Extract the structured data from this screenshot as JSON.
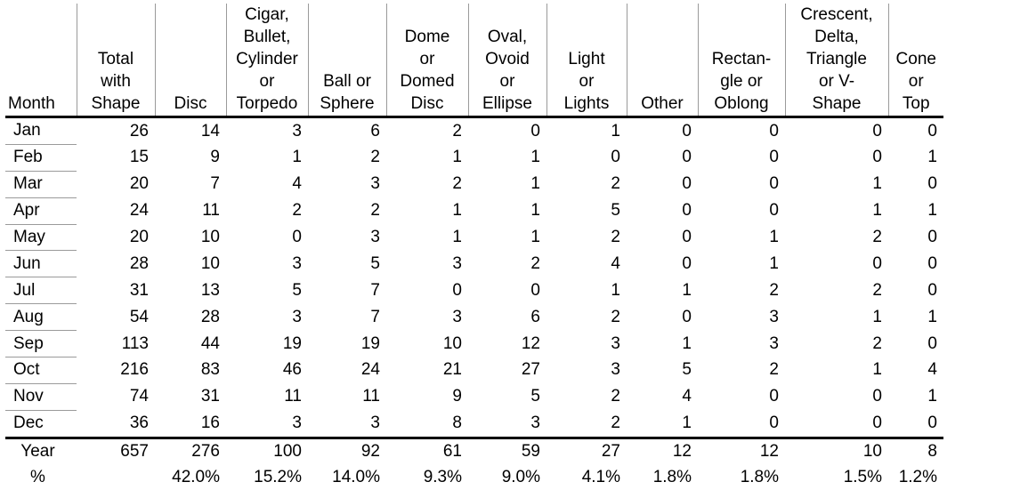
{
  "table": {
    "headers": [
      [
        "Month"
      ],
      [
        "Total",
        "with",
        "Shape"
      ],
      [
        "Disc"
      ],
      [
        "Cigar,",
        "Bullet,",
        "Cylinder",
        "or",
        "Torpedo"
      ],
      [
        "Ball or",
        "Sphere"
      ],
      [
        "Dome",
        "or",
        "Domed",
        "Disc"
      ],
      [
        "Oval,",
        "Ovoid",
        "or",
        "Ellipse"
      ],
      [
        "Light",
        "or",
        "Lights"
      ],
      [
        "Other"
      ],
      [
        "Rectan-",
        "gle or",
        "Oblong"
      ],
      [
        "Crescent,",
        "Delta,",
        "Triangle",
        "or V-",
        "Shape"
      ],
      [
        "Cone",
        "or",
        "Top"
      ]
    ],
    "rows": [
      [
        "Jan",
        "26",
        "14",
        "3",
        "6",
        "2",
        "0",
        "1",
        "0",
        "0",
        "0",
        "0"
      ],
      [
        "Feb",
        "15",
        "9",
        "1",
        "2",
        "1",
        "1",
        "0",
        "0",
        "0",
        "0",
        "1"
      ],
      [
        "Mar",
        "20",
        "7",
        "4",
        "3",
        "2",
        "1",
        "2",
        "0",
        "0",
        "1",
        "0"
      ],
      [
        "Apr",
        "24",
        "11",
        "2",
        "2",
        "1",
        "1",
        "5",
        "0",
        "0",
        "1",
        "1"
      ],
      [
        "May",
        "20",
        "10",
        "0",
        "3",
        "1",
        "1",
        "2",
        "0",
        "1",
        "2",
        "0"
      ],
      [
        "Jun",
        "28",
        "10",
        "3",
        "5",
        "3",
        "2",
        "4",
        "0",
        "1",
        "0",
        "0"
      ],
      [
        "Jul",
        "31",
        "13",
        "5",
        "7",
        "0",
        "0",
        "1",
        "1",
        "2",
        "2",
        "0"
      ],
      [
        "Aug",
        "54",
        "28",
        "3",
        "7",
        "3",
        "6",
        "2",
        "0",
        "3",
        "1",
        "1"
      ],
      [
        "Sep",
        "113",
        "44",
        "19",
        "19",
        "10",
        "12",
        "3",
        "1",
        "3",
        "2",
        "0"
      ],
      [
        "Oct",
        "216",
        "83",
        "46",
        "24",
        "21",
        "27",
        "3",
        "5",
        "2",
        "1",
        "4"
      ],
      [
        "Nov",
        "74",
        "31",
        "11",
        "11",
        "9",
        "5",
        "2",
        "4",
        "0",
        "0",
        "1"
      ],
      [
        "Dec",
        "36",
        "16",
        "3",
        "3",
        "8",
        "3",
        "2",
        "1",
        "0",
        "0",
        "0"
      ]
    ],
    "total_row": [
      "Year",
      "657",
      "276",
      "100",
      "92",
      "61",
      "59",
      "27",
      "12",
      "12",
      "10",
      "8"
    ],
    "percent_row": [
      "%",
      "",
      "42.0%",
      "15.2%",
      "14.0%",
      "9.3%",
      "9.0%",
      "4.1%",
      "1.8%",
      "1.8%",
      "1.5%",
      "1.2%"
    ]
  }
}
